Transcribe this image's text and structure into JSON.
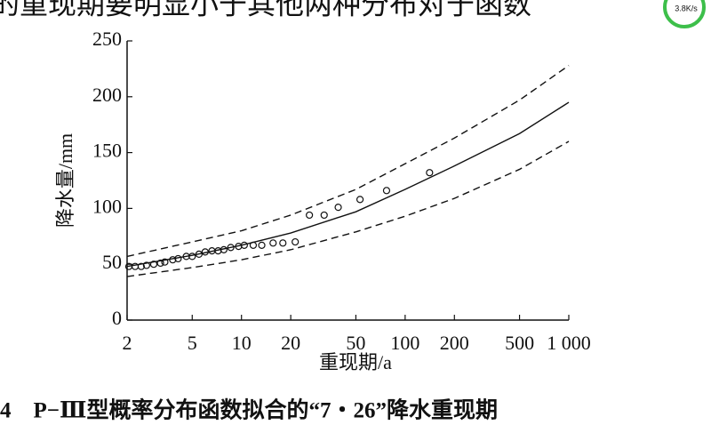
{
  "page": {
    "top_text": "的重现期要明显小于其他两种分布对于函数",
    "badge": "3.8K/s",
    "caption": "4　P−Ⅲ型概率分布函数拟合的“7・26”降水重现期"
  },
  "chart_data": {
    "type": "line",
    "x_label": "重现期/a",
    "y_label": "降水量/mm",
    "x_scale": "log",
    "xlim": [
      2,
      1000
    ],
    "ylim": [
      0,
      250
    ],
    "xticks": [
      2,
      5,
      10,
      20,
      50,
      100,
      200,
      {
        "value": 1000,
        "label": "1 000"
      }
    ],
    "xticks_extra": [
      500
    ],
    "yticks": [
      0,
      50,
      100,
      150,
      200,
      250
    ],
    "series": [
      {
        "type": "line",
        "style": "solid",
        "color": "#111111",
        "x": [
          2,
          5,
          10,
          20,
          50,
          100,
          200,
          500,
          1000
        ],
        "values": [
          48,
          58,
          67,
          78,
          97,
          117,
          138,
          167,
          195
        ]
      },
      {
        "type": "line",
        "style": "dashed",
        "color": "#111111",
        "x": [
          2,
          5,
          10,
          20,
          50,
          100,
          200,
          500,
          1000
        ],
        "values": [
          57,
          70,
          80,
          94,
          117,
          140,
          163,
          197,
          228
        ]
      },
      {
        "type": "line",
        "style": "dashed",
        "color": "#111111",
        "x": [
          2,
          5,
          10,
          20,
          50,
          100,
          200,
          500,
          1000
        ],
        "values": [
          39,
          47,
          54,
          63,
          79,
          93,
          109,
          135,
          160
        ]
      },
      {
        "type": "scatter",
        "color": "#111111",
        "x": [
          2.05,
          2.24,
          2.44,
          2.63,
          2.91,
          3.2,
          3.4,
          3.8,
          4.1,
          4.6,
          5,
          5.5,
          6,
          6.6,
          7.2,
          7.8,
          8.6,
          9.6,
          10.4,
          11.8,
          13.3,
          15.6,
          17.9,
          21.3,
          26,
          32,
          39,
          53,
          77,
          141
        ],
        "values": [
          48,
          48,
          48,
          49,
          50,
          51,
          52,
          54,
          55,
          57,
          57,
          59,
          61,
          62,
          62,
          63,
          65,
          66,
          67,
          67,
          67,
          69,
          69,
          70,
          94,
          94,
          101,
          108,
          116,
          132
        ]
      }
    ]
  }
}
